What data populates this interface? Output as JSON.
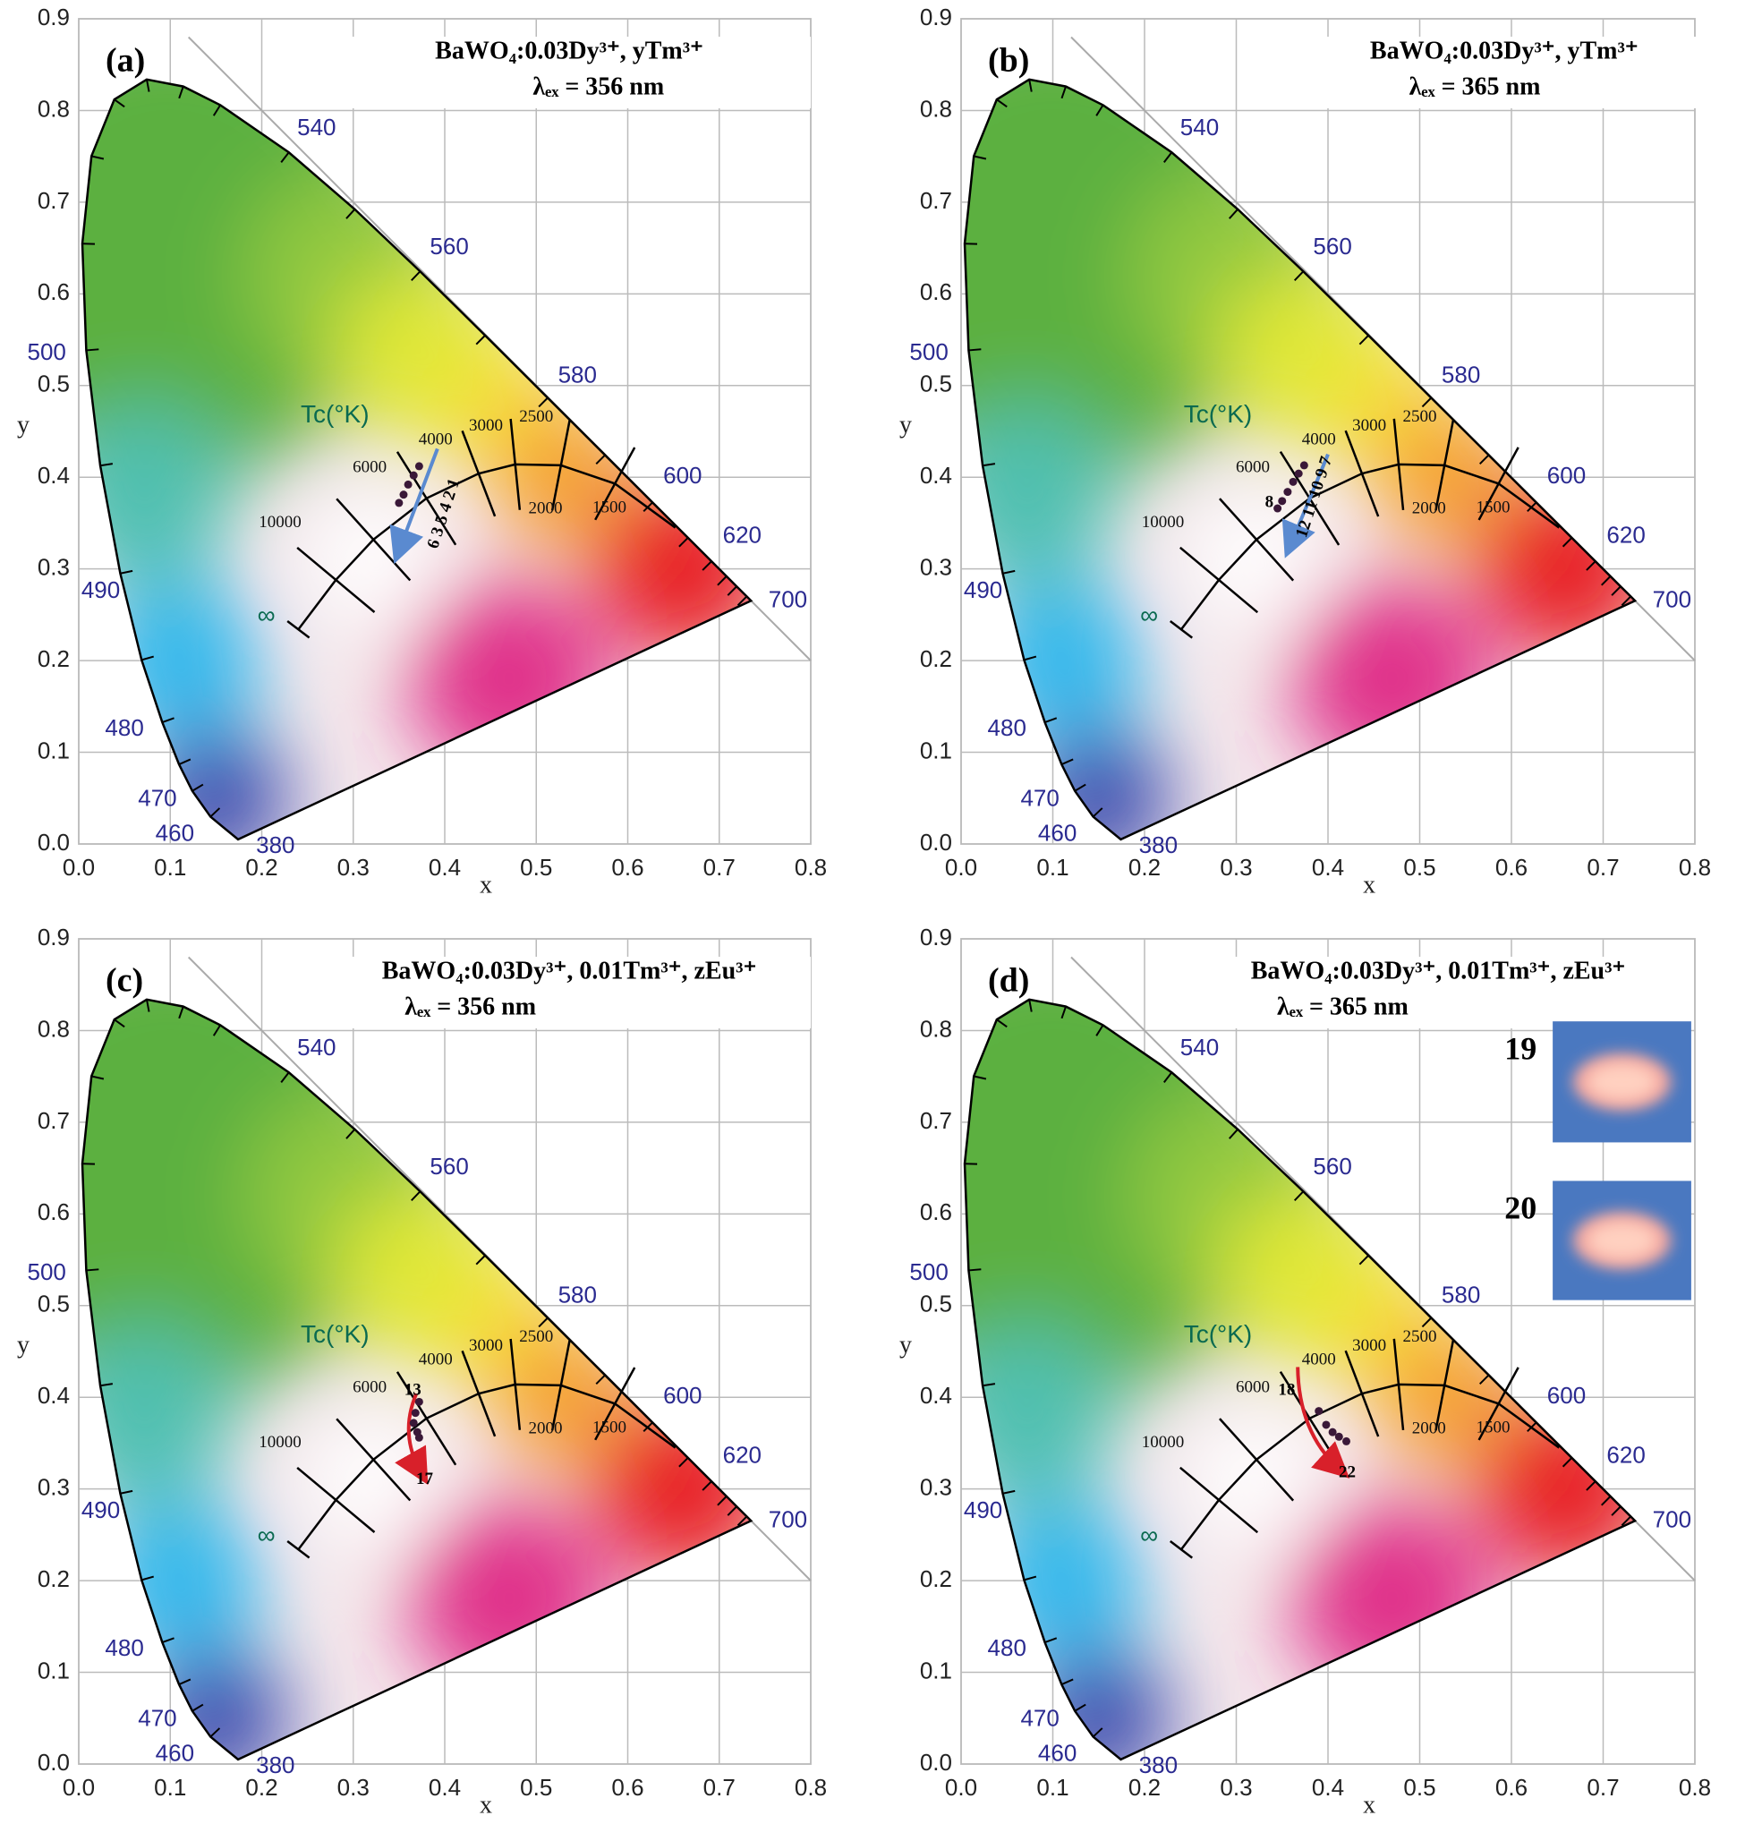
{
  "chart_data": [
    {
      "type": "scatter",
      "panel_label": "(a)",
      "title": "BaWO₄:0.03Dy³⁺, yTm³⁺",
      "subtitle": "λₑₓ = 356 nm",
      "x_label": "x",
      "y_label": "y",
      "xlim": [
        0,
        0.8
      ],
      "ylim": [
        0,
        0.9
      ],
      "xticks": [
        {
          "value": 0,
          "label": "0.0"
        },
        0.1,
        0.2,
        0.3,
        0.4,
        0.5,
        0.6,
        0.7,
        0.8
      ],
      "yticks": [
        {
          "value": 0,
          "label": "0.0"
        },
        0.1,
        0.2,
        0.3,
        0.4,
        0.5,
        0.6,
        0.7,
        0.8,
        0.9
      ],
      "grid": true,
      "wavelength_labels": [
        "540",
        "560",
        "580",
        "600",
        "620",
        "700",
        "500",
        "490",
        "480",
        "470",
        "460",
        "380"
      ],
      "cct_title": "Tc(°K)",
      "cct_labels": [
        "10000",
        "6000",
        "4000",
        "3000",
        "2500",
        "2000",
        "1500",
        "∞"
      ],
      "x": [
        0.35,
        0.355,
        0.36,
        0.366,
        0.372
      ],
      "values": [
        0.372,
        0.381,
        0.392,
        0.402,
        0.412
      ],
      "color": "#3a1838",
      "annotations": [
        "6 3 5 4 2 1"
      ]
    },
    {
      "type": "scatter",
      "panel_label": "(b)",
      "title": "BaWO₄:0.03Dy³⁺, yTm³⁺",
      "subtitle": "λₑₓ = 365 nm",
      "x_label": "x",
      "y_label": "y",
      "xlim": [
        0,
        0.8
      ],
      "ylim": [
        0,
        0.9
      ],
      "xticks": [
        {
          "value": 0,
          "label": "0.0"
        },
        0.1,
        0.2,
        0.3,
        0.4,
        0.5,
        0.6,
        0.7,
        0.8
      ],
      "yticks": [
        {
          "value": 0,
          "label": "0.0"
        },
        0.1,
        0.2,
        0.3,
        0.4,
        0.5,
        0.6,
        0.7,
        0.8,
        0.9
      ],
      "grid": true,
      "wavelength_labels": [
        "540",
        "560",
        "580",
        "600",
        "620",
        "700",
        "500",
        "490",
        "480",
        "470",
        "460",
        "380"
      ],
      "cct_title": "Tc(°K)",
      "cct_labels": [
        "10000",
        "6000",
        "4000",
        "3000",
        "2500",
        "2000",
        "1500",
        "∞"
      ],
      "x": [
        0.345,
        0.35,
        0.356,
        0.362,
        0.368,
        0.374
      ],
      "values": [
        0.366,
        0.374,
        0.384,
        0.395,
        0.404,
        0.413
      ],
      "color": "#3a1838",
      "annotations": [
        "8",
        "12 11 10 9 7"
      ]
    },
    {
      "type": "scatter",
      "panel_label": "(c)",
      "title": "BaWO₄:0.03Dy³⁺, 0.01Tm³⁺, zEu³⁺",
      "subtitle": "λₑₓ = 356 nm",
      "x_label": "x",
      "y_label": "y",
      "xlim": [
        0,
        0.8
      ],
      "ylim": [
        0,
        0.9
      ],
      "xticks": [
        {
          "value": 0,
          "label": "0.0"
        },
        0.1,
        0.2,
        0.3,
        0.4,
        0.5,
        0.6,
        0.7,
        0.8
      ],
      "yticks": [
        {
          "value": 0,
          "label": "0.0"
        },
        0.1,
        0.2,
        0.3,
        0.4,
        0.5,
        0.6,
        0.7,
        0.8,
        0.9
      ],
      "grid": true,
      "wavelength_labels": [
        "540",
        "560",
        "580",
        "600",
        "620",
        "700",
        "500",
        "490",
        "480",
        "470",
        "460",
        "380"
      ],
      "cct_title": "Tc(°K)",
      "cct_labels": [
        "10000",
        "6000",
        "4000",
        "3000",
        "2500",
        "2000",
        "1500",
        "∞"
      ],
      "x": [
        0.372,
        0.368,
        0.366,
        0.37,
        0.372
      ],
      "values": [
        0.395,
        0.383,
        0.372,
        0.362,
        0.356
      ],
      "color": "#3a1838",
      "annotations": [
        "13",
        "17"
      ]
    },
    {
      "type": "scatter",
      "panel_label": "(d)",
      "title": "BaWO₄:0.03Dy³⁺, 0.01Tm³⁺, zEu³⁺",
      "subtitle": "λₑₓ = 365 nm",
      "x_label": "x",
      "y_label": "y",
      "xlim": [
        0,
        0.8
      ],
      "ylim": [
        0,
        0.9
      ],
      "xticks": [
        {
          "value": 0,
          "label": "0.0"
        },
        0.1,
        0.2,
        0.3,
        0.4,
        0.5,
        0.6,
        0.7,
        0.8
      ],
      "yticks": [
        {
          "value": 0,
          "label": "0.0"
        },
        0.1,
        0.2,
        0.3,
        0.4,
        0.5,
        0.6,
        0.7,
        0.8,
        0.9
      ],
      "grid": true,
      "wavelength_labels": [
        "540",
        "560",
        "580",
        "600",
        "620",
        "700",
        "500",
        "490",
        "480",
        "470",
        "460",
        "380"
      ],
      "cct_title": "Tc(°K)",
      "cct_labels": [
        "10000",
        "6000",
        "4000",
        "3000",
        "2500",
        "2000",
        "1500",
        "∞"
      ],
      "x": [
        0.39,
        0.398,
        0.405,
        0.412,
        0.42
      ],
      "values": [
        0.385,
        0.37,
        0.362,
        0.357,
        0.352
      ],
      "color": "#3a1838",
      "annotations": [
        "18",
        "22"
      ],
      "inset_labels": [
        "19",
        "20"
      ]
    }
  ]
}
